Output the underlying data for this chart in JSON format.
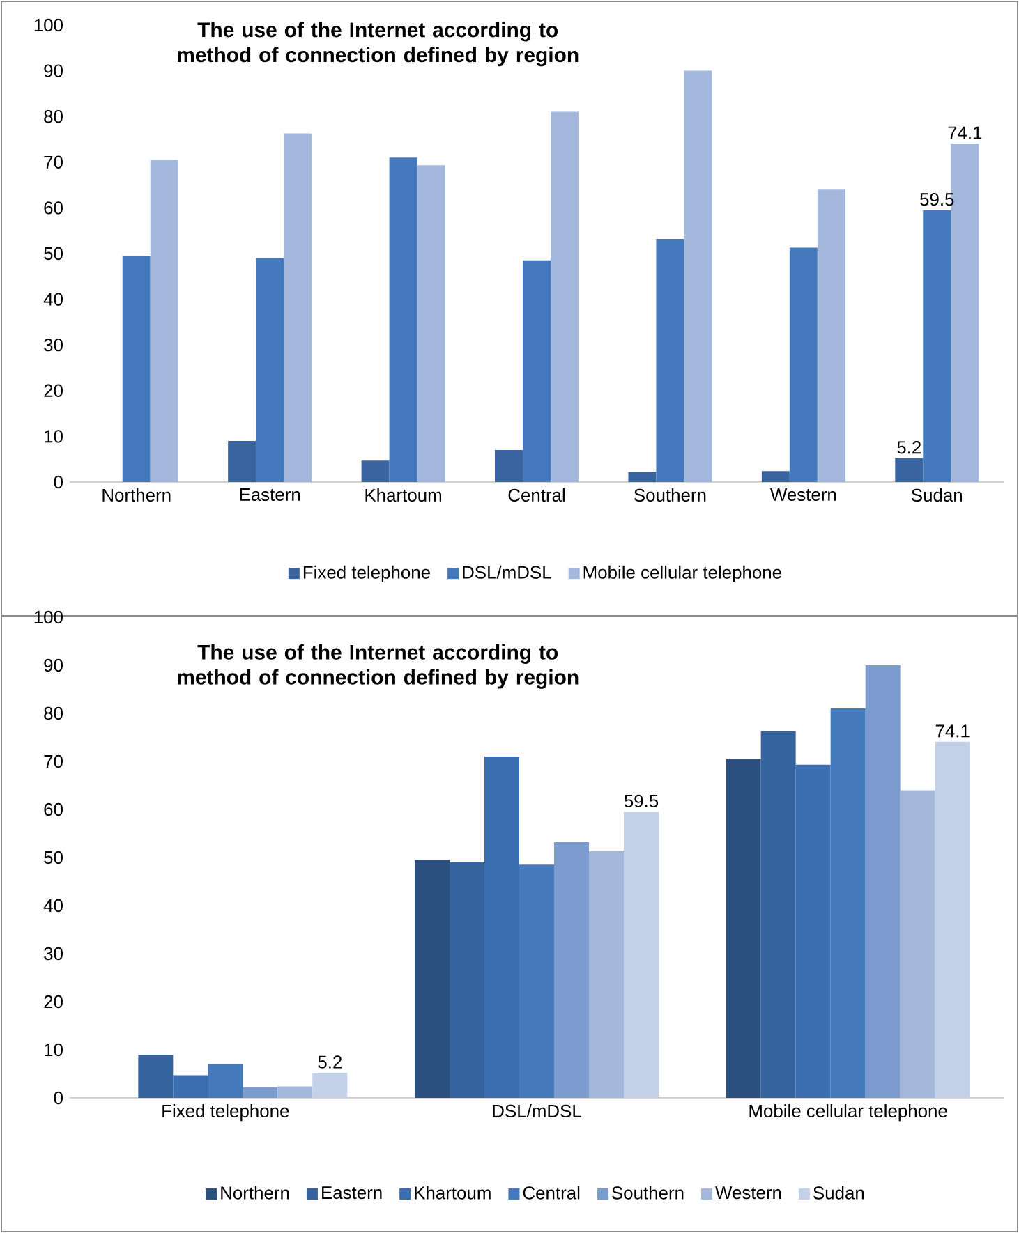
{
  "chart_data": [
    {
      "type": "bar",
      "title": "**The use of the Internet according to method of connection defined by region**",
      "categories": [
        "Northern",
        "Eastern",
        "Khartoum",
        "Central",
        "Southern",
        "Western",
        "Sudan"
      ],
      "series": [
        {
          "name": "Fixed telephone",
          "color": "#3a64a0",
          "values": [
            0,
            9,
            4.7,
            7,
            2.2,
            2.4,
            5.2
          ],
          "value_labels": [
            null,
            null,
            null,
            null,
            null,
            null,
            "5.2"
          ]
        },
        {
          "name": "DSL/mDSL",
          "color": "#4579bd",
          "values": [
            49.5,
            49,
            71,
            48.5,
            53.2,
            51.3,
            59.5
          ],
          "value_labels": [
            null,
            null,
            null,
            null,
            null,
            null,
            "59.5"
          ]
        },
        {
          "name": "Mobile cellular telephone",
          "color": "#a3b8dc",
          "values": [
            70.5,
            76.3,
            69.3,
            81,
            90,
            64,
            74.1
          ],
          "value_labels": [
            null,
            null,
            null,
            null,
            null,
            null,
            "74.1"
          ]
        }
      ],
      "ylim": [
        0,
        100
      ],
      "yticks": [
        0,
        10,
        20,
        30,
        40,
        50,
        60,
        70,
        80,
        90,
        100
      ],
      "legend": "bottom"
    },
    {
      "type": "bar",
      "title": "**The use of the Internet according to method of connection defined by region**",
      "categories": [
        "Fixed telephone",
        "DSL/mDSL",
        "Mobile cellular telephone"
      ],
      "series": [
        {
          "name": "Northern",
          "color": "#2c5181",
          "values": [
            0,
            49.5,
            70.5
          ]
        },
        {
          "name": "Eastern",
          "color": "#35639e",
          "values": [
            9,
            49,
            76.3
          ]
        },
        {
          "name": "Khartoum",
          "color": "#3b6eb0",
          "values": [
            4.7,
            71,
            69.3
          ]
        },
        {
          "name": "Central",
          "color": "#4479bb",
          "values": [
            7,
            48.5,
            81
          ]
        },
        {
          "name": "Southern",
          "color": "#7c9bcf",
          "values": [
            2.2,
            53.2,
            90
          ]
        },
        {
          "name": "Western",
          "color": "#a4b8dc",
          "values": [
            2.4,
            51.3,
            64
          ]
        },
        {
          "name": "Sudan",
          "color": "#c4d0e8",
          "values": [
            5.2,
            59.5,
            74.1
          ],
          "value_labels": [
            "5.2",
            "59.5",
            "74.1"
          ]
        }
      ],
      "ylim": [
        0,
        100
      ],
      "yticks": [
        0,
        10,
        20,
        30,
        40,
        50,
        60,
        70,
        80,
        90,
        100
      ],
      "legend": "bottom"
    }
  ]
}
